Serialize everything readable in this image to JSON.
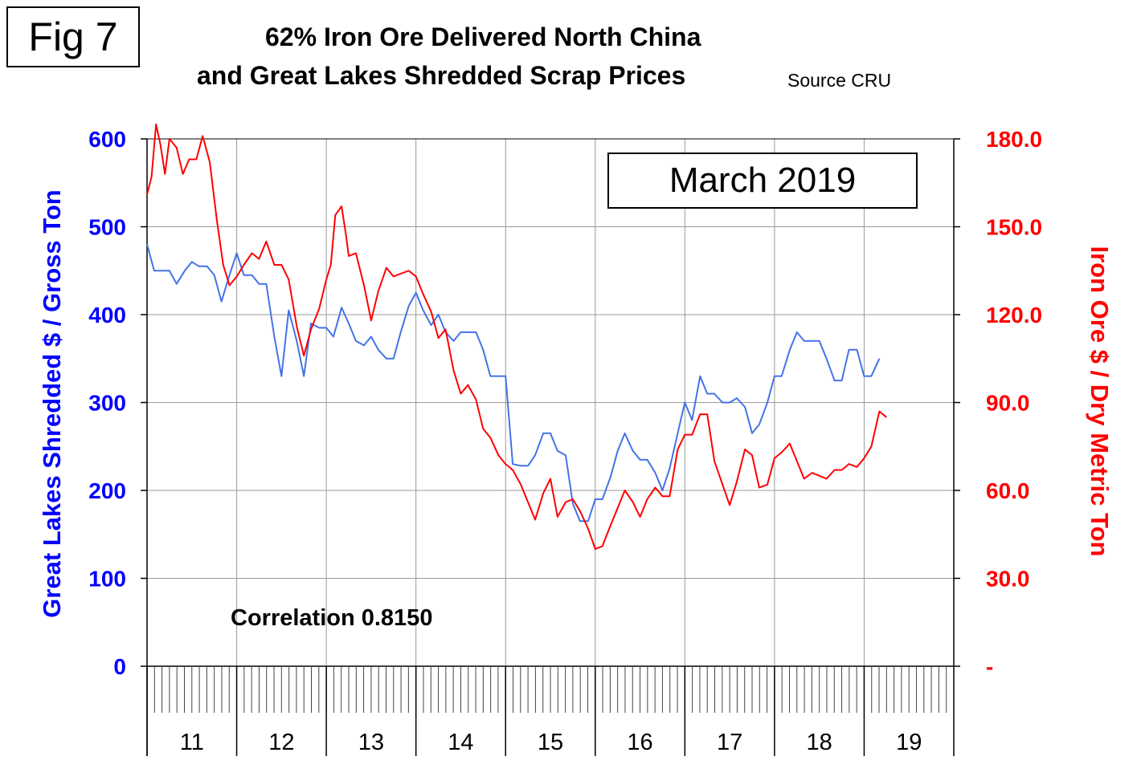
{
  "figure_label": "Fig 7",
  "title_line1": "62% Iron Ore Delivered North China",
  "title_line2": "and Great Lakes Shredded Scrap Prices",
  "source": "Source CRU",
  "month_label": "March 2019",
  "correlation": "Correlation 0.8150",
  "colors": {
    "scrap": "#4472e8",
    "iron_ore": "#ff0000",
    "left_axis": "#0000ff",
    "right_axis": "#ff0000"
  },
  "chart_data": {
    "type": "line",
    "ylabel_left": "Great Lakes Shredded $ / Gross Ton",
    "ylabel_right": "Iron Ore $ / Dry Metric Ton",
    "ylim_left": [
      0,
      600
    ],
    "ylim_right": [
      0,
      180
    ],
    "yticks_left": [
      "0",
      "100",
      "200",
      "300",
      "400",
      "500",
      "600"
    ],
    "yticks_right": [
      "-",
      "30.0",
      "60.0",
      "90.0",
      "120.0",
      "150.0",
      "180.0"
    ],
    "xlim": [
      2011.0,
      2020.0
    ],
    "x_tick_labels": [
      "11",
      "12",
      "13",
      "14",
      "15",
      "16",
      "17",
      "18",
      "19"
    ],
    "grid": true,
    "series": [
      {
        "name": "Great Lakes Shredded",
        "axis": "left",
        "points": [
          [
            2011.0,
            480
          ],
          [
            2011.08,
            450
          ],
          [
            2011.17,
            450
          ],
          [
            2011.25,
            450
          ],
          [
            2011.33,
            435
          ],
          [
            2011.42,
            450
          ],
          [
            2011.5,
            460
          ],
          [
            2011.58,
            455
          ],
          [
            2011.67,
            455
          ],
          [
            2011.75,
            445
          ],
          [
            2011.83,
            415
          ],
          [
            2011.92,
            445
          ],
          [
            2012.0,
            470
          ],
          [
            2012.08,
            445
          ],
          [
            2012.17,
            445
          ],
          [
            2012.25,
            435
          ],
          [
            2012.33,
            435
          ],
          [
            2012.42,
            375
          ],
          [
            2012.5,
            330
          ],
          [
            2012.58,
            405
          ],
          [
            2012.67,
            370
          ],
          [
            2012.75,
            330
          ],
          [
            2012.83,
            390
          ],
          [
            2012.92,
            385
          ],
          [
            2013.0,
            385
          ],
          [
            2013.08,
            375
          ],
          [
            2013.17,
            408
          ],
          [
            2013.25,
            390
          ],
          [
            2013.33,
            370
          ],
          [
            2013.42,
            365
          ],
          [
            2013.5,
            375
          ],
          [
            2013.58,
            360
          ],
          [
            2013.67,
            350
          ],
          [
            2013.75,
            350
          ],
          [
            2013.83,
            380
          ],
          [
            2013.92,
            410
          ],
          [
            2014.0,
            425
          ],
          [
            2014.08,
            405
          ],
          [
            2014.17,
            388
          ],
          [
            2014.25,
            400
          ],
          [
            2014.33,
            380
          ],
          [
            2014.42,
            370
          ],
          [
            2014.5,
            380
          ],
          [
            2014.58,
            380
          ],
          [
            2014.67,
            380
          ],
          [
            2014.75,
            360
          ],
          [
            2014.83,
            330
          ],
          [
            2014.92,
            330
          ],
          [
            2015.0,
            330
          ],
          [
            2015.08,
            230
          ],
          [
            2015.17,
            228
          ],
          [
            2015.25,
            228
          ],
          [
            2015.33,
            240
          ],
          [
            2015.42,
            265
          ],
          [
            2015.5,
            265
          ],
          [
            2015.58,
            245
          ],
          [
            2015.67,
            240
          ],
          [
            2015.75,
            185
          ],
          [
            2015.83,
            165
          ],
          [
            2015.92,
            165
          ],
          [
            2016.0,
            190
          ],
          [
            2016.08,
            190
          ],
          [
            2016.17,
            215
          ],
          [
            2016.25,
            245
          ],
          [
            2016.33,
            265
          ],
          [
            2016.42,
            245
          ],
          [
            2016.5,
            235
          ],
          [
            2016.58,
            235
          ],
          [
            2016.67,
            220
          ],
          [
            2016.75,
            200
          ],
          [
            2016.83,
            225
          ],
          [
            2016.92,
            265
          ],
          [
            2017.0,
            300
          ],
          [
            2017.08,
            280
          ],
          [
            2017.17,
            330
          ],
          [
            2017.25,
            310
          ],
          [
            2017.33,
            310
          ],
          [
            2017.42,
            300
          ],
          [
            2017.5,
            300
          ],
          [
            2017.58,
            305
          ],
          [
            2017.67,
            295
          ],
          [
            2017.75,
            265
          ],
          [
            2017.83,
            275
          ],
          [
            2017.92,
            300
          ],
          [
            2018.0,
            330
          ],
          [
            2018.08,
            330
          ],
          [
            2018.17,
            360
          ],
          [
            2018.25,
            380
          ],
          [
            2018.33,
            370
          ],
          [
            2018.42,
            370
          ],
          [
            2018.5,
            370
          ],
          [
            2018.58,
            350
          ],
          [
            2018.67,
            325
          ],
          [
            2018.75,
            325
          ],
          [
            2018.83,
            360
          ],
          [
            2018.92,
            360
          ],
          [
            2019.0,
            330
          ],
          [
            2019.08,
            330
          ],
          [
            2019.17,
            350
          ]
        ]
      },
      {
        "name": "62% Iron Ore Delivered North China",
        "axis": "right",
        "points": [
          [
            2011.0,
            161
          ],
          [
            2011.05,
            167
          ],
          [
            2011.1,
            185
          ],
          [
            2011.15,
            178
          ],
          [
            2011.2,
            168
          ],
          [
            2011.25,
            180
          ],
          [
            2011.33,
            177
          ],
          [
            2011.4,
            168
          ],
          [
            2011.47,
            173
          ],
          [
            2011.55,
            173
          ],
          [
            2011.62,
            181
          ],
          [
            2011.7,
            172
          ],
          [
            2011.78,
            152
          ],
          [
            2011.85,
            137
          ],
          [
            2011.92,
            130
          ],
          [
            2012.0,
            133
          ],
          [
            2012.08,
            137
          ],
          [
            2012.17,
            141
          ],
          [
            2012.25,
            139
          ],
          [
            2012.33,
            145
          ],
          [
            2012.42,
            137
          ],
          [
            2012.5,
            137
          ],
          [
            2012.58,
            132
          ],
          [
            2012.67,
            116
          ],
          [
            2012.75,
            106
          ],
          [
            2012.83,
            115
          ],
          [
            2012.92,
            122
          ],
          [
            2013.0,
            132
          ],
          [
            2013.05,
            137
          ],
          [
            2013.1,
            154
          ],
          [
            2013.17,
            157
          ],
          [
            2013.22,
            147
          ],
          [
            2013.25,
            140
          ],
          [
            2013.33,
            141
          ],
          [
            2013.42,
            130
          ],
          [
            2013.5,
            118
          ],
          [
            2013.58,
            128
          ],
          [
            2013.67,
            136
          ],
          [
            2013.75,
            133
          ],
          [
            2013.83,
            134
          ],
          [
            2013.92,
            135
          ],
          [
            2014.0,
            133
          ],
          [
            2014.08,
            127
          ],
          [
            2014.17,
            121
          ],
          [
            2014.25,
            112
          ],
          [
            2014.33,
            115
          ],
          [
            2014.42,
            101
          ],
          [
            2014.5,
            93
          ],
          [
            2014.58,
            96
          ],
          [
            2014.67,
            91
          ],
          [
            2014.75,
            81
          ],
          [
            2014.83,
            78
          ],
          [
            2014.92,
            72
          ],
          [
            2015.0,
            69
          ],
          [
            2015.08,
            67
          ],
          [
            2015.17,
            62
          ],
          [
            2015.25,
            56
          ],
          [
            2015.33,
            50
          ],
          [
            2015.42,
            59
          ],
          [
            2015.5,
            64
          ],
          [
            2015.58,
            51
          ],
          [
            2015.67,
            56
          ],
          [
            2015.75,
            57
          ],
          [
            2015.83,
            53
          ],
          [
            2015.92,
            47
          ],
          [
            2016.0,
            40
          ],
          [
            2016.08,
            41
          ],
          [
            2016.17,
            48
          ],
          [
            2016.25,
            54
          ],
          [
            2016.33,
            60
          ],
          [
            2016.42,
            56
          ],
          [
            2016.5,
            51
          ],
          [
            2016.58,
            57
          ],
          [
            2016.67,
            61
          ],
          [
            2016.75,
            58
          ],
          [
            2016.83,
            58
          ],
          [
            2016.92,
            74
          ],
          [
            2017.0,
            79
          ],
          [
            2017.08,
            79
          ],
          [
            2017.17,
            86
          ],
          [
            2017.25,
            86
          ],
          [
            2017.33,
            70
          ],
          [
            2017.42,
            62
          ],
          [
            2017.5,
            55
          ],
          [
            2017.58,
            63
          ],
          [
            2017.67,
            74
          ],
          [
            2017.75,
            72
          ],
          [
            2017.83,
            61
          ],
          [
            2017.92,
            62
          ],
          [
            2018.0,
            71
          ],
          [
            2018.08,
            73
          ],
          [
            2018.17,
            76
          ],
          [
            2018.25,
            70
          ],
          [
            2018.33,
            64
          ],
          [
            2018.42,
            66
          ],
          [
            2018.5,
            65
          ],
          [
            2018.58,
            64
          ],
          [
            2018.67,
            67
          ],
          [
            2018.75,
            67
          ],
          [
            2018.83,
            69
          ],
          [
            2018.92,
            68
          ],
          [
            2019.0,
            71
          ],
          [
            2019.08,
            75
          ],
          [
            2019.17,
            87
          ],
          [
            2019.25,
            85
          ]
        ]
      }
    ]
  }
}
